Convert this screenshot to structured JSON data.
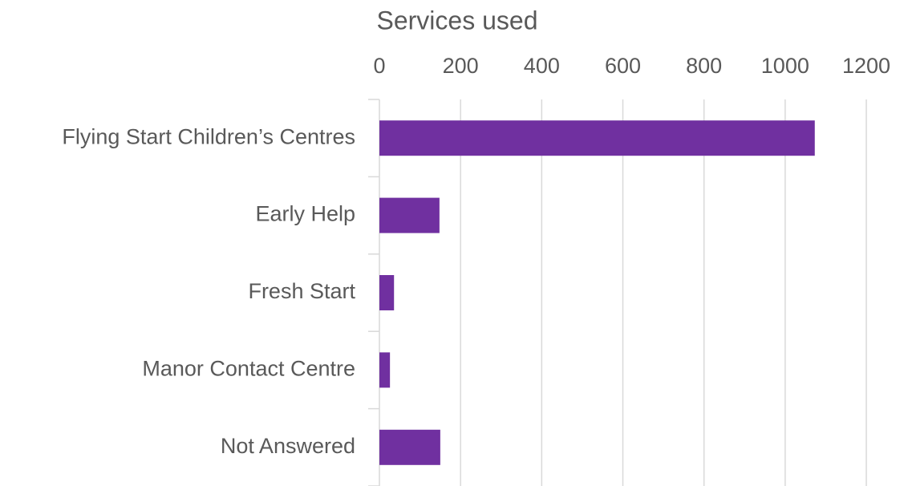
{
  "chart_data": {
    "type": "bar",
    "orientation": "horizontal",
    "title": "Services used",
    "categories": [
      "Flying Start Children’s Centres",
      "Early Help",
      "Fresh Start",
      "Manor Contact Centre",
      "Not Answered"
    ],
    "values": [
      1073,
      148,
      36,
      26,
      150
    ],
    "color": "#7030a0",
    "xlim": [
      0,
      1200
    ],
    "xticks": [
      0,
      200,
      400,
      600,
      800,
      1000,
      1200
    ],
    "grid": true,
    "x_axis_position": "top"
  }
}
